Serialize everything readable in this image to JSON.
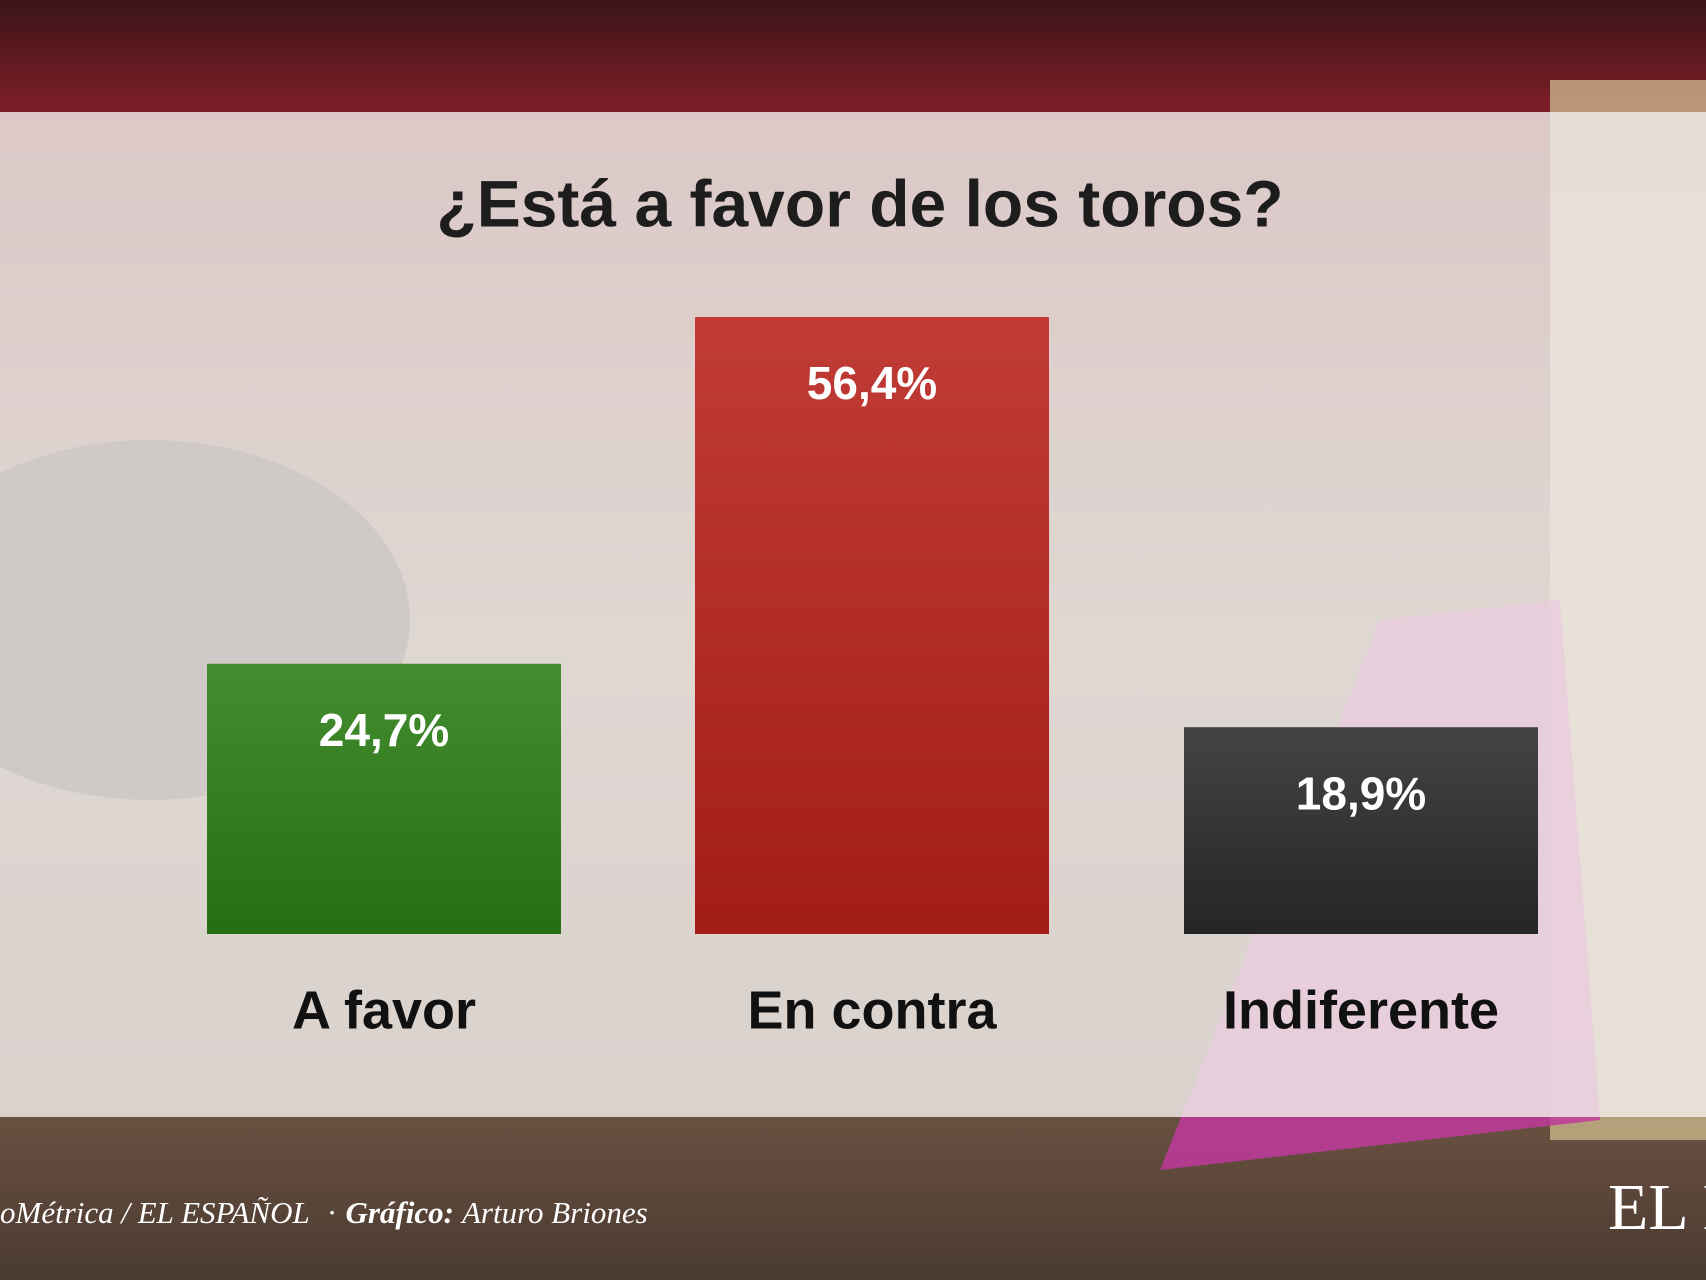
{
  "chart_data": {
    "type": "bar",
    "title": "¿Está a favor de los toros?",
    "categories": [
      "A favor",
      "En contra",
      "Indiferente"
    ],
    "values": [
      24.7,
      56.4,
      18.9
    ],
    "value_labels": [
      "24,7%",
      "56,4%",
      "18,9%"
    ],
    "colors": [
      "#2b7d14",
      "#b8211a",
      "#2a2a2a"
    ]
  },
  "footer": {
    "source": "oMétrica / EL ESPAÑOL",
    "credit_label": "Gráfico:",
    "credit": "Arturo Briones",
    "logo": "EL E"
  }
}
